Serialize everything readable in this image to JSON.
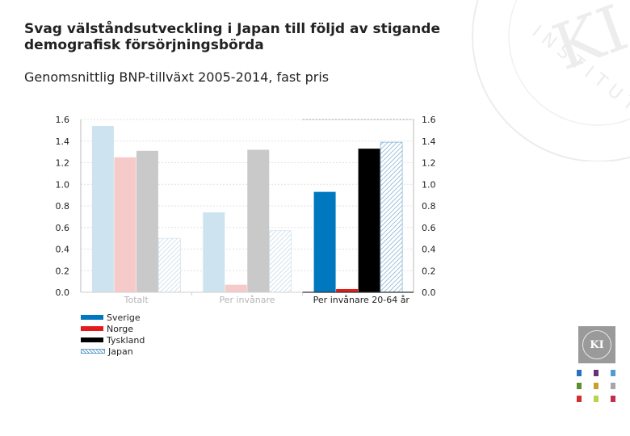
{
  "slide": {
    "title": "Svag välståndsutveckling i Japan till följd av stigande demografisk försörjningsbörda",
    "subtitle": "Genomsnittlig BNP-tillväxt 2005-2014, fast pris"
  },
  "watermark": {
    "text": "INSTITUTET",
    "monogram": "KI"
  },
  "logo": {
    "monogram": "KI"
  },
  "colors": {
    "sverige_light": "#cde3f0",
    "norge_light": "#f7caca",
    "tyskland_light": "#c9c9c9",
    "japan_light": "#b9d4e4",
    "sverige": "#0078c0",
    "norge": "#e41b1b",
    "tyskland": "#000000",
    "japan": "#6aa3c9"
  },
  "chart_data": {
    "type": "bar",
    "categories": [
      "Totalt",
      "Per invånare",
      "Per invånare 20-64 år"
    ],
    "highlighted_category": "Per invånare 20-64 år",
    "series": [
      {
        "name": "Sverige",
        "values": [
          1.54,
          0.74,
          0.93
        ]
      },
      {
        "name": "Norge",
        "values": [
          1.25,
          0.07,
          0.03
        ]
      },
      {
        "name": "Tyskland",
        "values": [
          1.31,
          1.32,
          1.33
        ]
      },
      {
        "name": "Japan",
        "values": [
          0.5,
          0.57,
          1.39
        ]
      }
    ],
    "ylim": [
      0,
      1.6
    ],
    "yticks": [
      "0.0",
      "0.2",
      "0.4",
      "0.6",
      "0.8",
      "1.0",
      "1.2",
      "1.4",
      "1.6"
    ],
    "y_axis_both_sides": true,
    "xlabel": "",
    "ylabel": "",
    "legend_position": "bottom-left",
    "grid": true
  },
  "side_dots": [
    "#2c6fbf",
    "#6a2f7a",
    "#4b9fd5",
    "#5e8f2f",
    "#c8a12a",
    "#a7a7a7",
    "#d42d2d",
    "#b8d44a",
    "#c0304a"
  ]
}
